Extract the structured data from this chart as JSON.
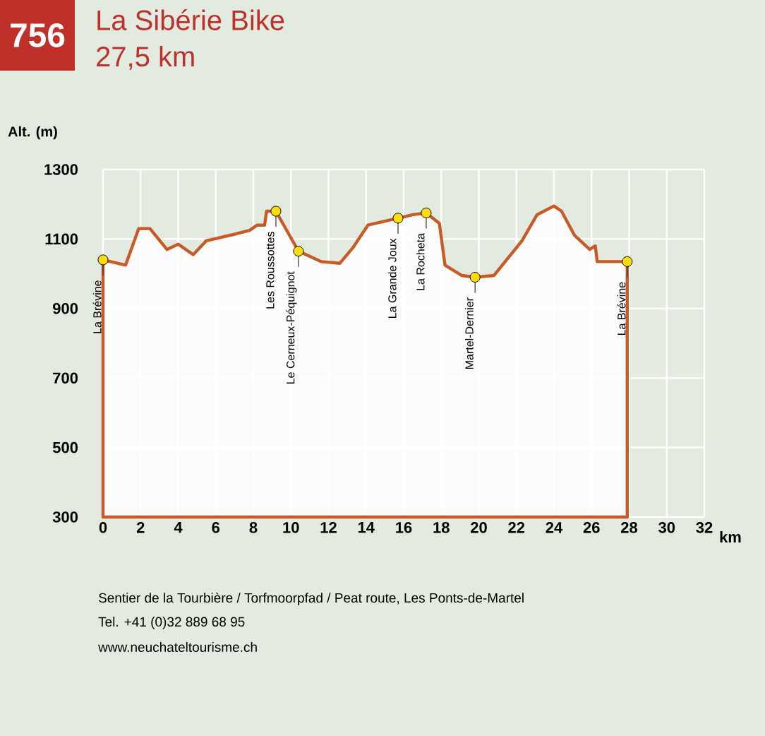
{
  "chart_data": {
    "type": "area",
    "title": "La Sibérie Bike",
    "subtitle": "27,5 km",
    "xlabel": "km",
    "ylabel": "Alt. (m)",
    "x": [
      0,
      1.2,
      1.9,
      2.5,
      3.4,
      4.0,
      4.8,
      5.5,
      7.1,
      7.8,
      8.2,
      8.6,
      8.7,
      9.2,
      10.4,
      11.6,
      12.6,
      13.3,
      14.1,
      15.7,
      16.5,
      17.2,
      17.9,
      18.2,
      19.1,
      19.8,
      20.8,
      22.3,
      23.1,
      24.0,
      24.4,
      25.1,
      25.9,
      26.2,
      26.3,
      27.9
    ],
    "series": [
      {
        "color": "#c85a28",
        "values": [
          1040,
          1025,
          1130,
          1130,
          1070,
          1085,
          1055,
          1095,
          1115,
          1125,
          1140,
          1140,
          1180,
          1180,
          1065,
          1035,
          1030,
          1075,
          1140,
          1160,
          1170,
          1175,
          1145,
          1025,
          995,
          990,
          995,
          1095,
          1170,
          1195,
          1180,
          1110,
          1070,
          1080,
          1035,
          1035
        ]
      }
    ],
    "xlim": [
      0,
      32
    ],
    "ylim": [
      300,
      1300
    ],
    "xticks": [
      0,
      2,
      4,
      6,
      8,
      10,
      12,
      14,
      16,
      18,
      20,
      22,
      24,
      26,
      28,
      30,
      32
    ],
    "yticks": [
      300,
      500,
      700,
      900,
      1100,
      1300
    ],
    "grid": true,
    "marker": "none",
    "line_style": "solid",
    "annotations": [
      {
        "text": "La Brévine",
        "x": 0,
        "y": 1040
      },
      {
        "text": "Les Roussottes",
        "x": 9.2,
        "y": 1180
      },
      {
        "text": "Le Cerneux-Péquignot",
        "x": 10.4,
        "y": 1065
      },
      {
        "text": "La Grande Joux",
        "x": 15.7,
        "y": 1160
      },
      {
        "text": "La Rocheta",
        "x": 17.2,
        "y": 1175
      },
      {
        "text": "Martel-Dernier",
        "x": 19.8,
        "y": 990
      },
      {
        "text": "La Brévine",
        "x": 27.9,
        "y": 1035
      },
      "756",
      "Sentier de la Tourbière / Torfmoorpfad / Peat route, Les Ponts-de-Martel",
      "Tel. +41 (0)32 889 68 95",
      "www.neuchateltourisme.ch"
    ]
  }
}
